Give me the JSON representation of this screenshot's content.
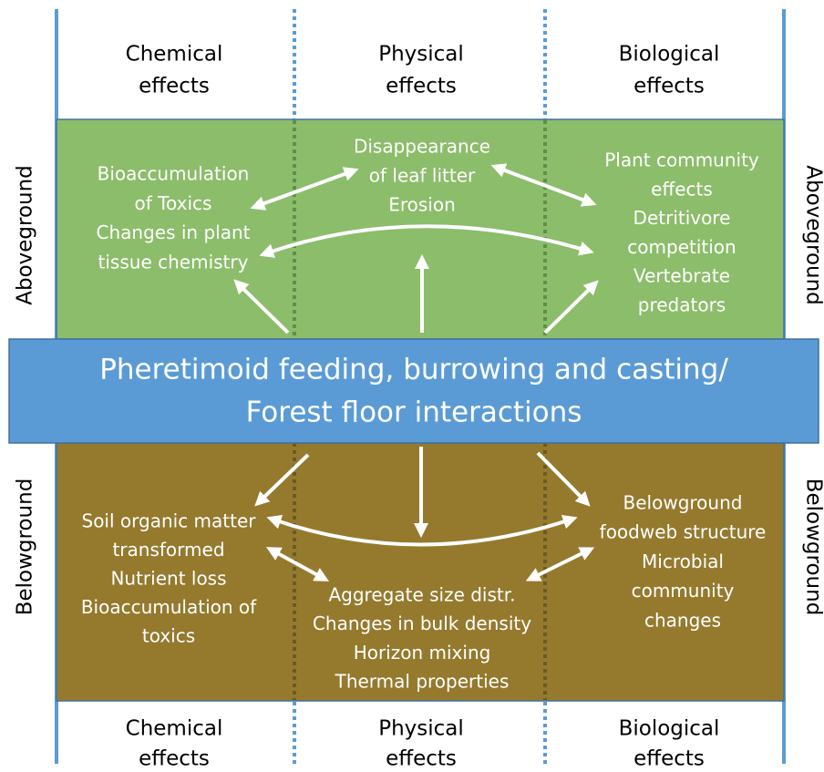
{
  "header": {
    "columns": [
      {
        "lines": [
          "Chemical",
          "effects"
        ]
      },
      {
        "lines": [
          "Physical",
          "effects"
        ]
      },
      {
        "lines": [
          "Biological",
          "effects"
        ]
      }
    ]
  },
  "footer": {
    "columns": [
      {
        "lines": [
          "Chemical",
          "effects"
        ]
      },
      {
        "lines": [
          "Physical",
          "effects"
        ]
      },
      {
        "lines": [
          "Biological",
          "effects"
        ]
      }
    ]
  },
  "side_labels": {
    "above_left": "Aboveground",
    "above_right": "Aboveground",
    "below_left": "Belowground",
    "below_right": "Belowground"
  },
  "center": {
    "lines": [
      "Pheretimoid feeding, burrowing and casting/",
      "Forest floor interactions"
    ]
  },
  "aboveground": {
    "chemical": {
      "lines": [
        "Bioaccumulation",
        "of Toxics",
        "Changes in plant",
        "tissue chemistry"
      ]
    },
    "physical": {
      "lines": [
        "Disappearance",
        "of leaf litter",
        "Erosion"
      ]
    },
    "biological": {
      "lines": [
        "Plant community",
        "effects",
        "Detritivore",
        "competition",
        "Vertebrate",
        "predators"
      ]
    }
  },
  "belowground": {
    "chemical": {
      "lines": [
        "Soil organic matter",
        "transformed",
        "Nutrient loss",
        "Bioaccumulation of",
        "toxics"
      ]
    },
    "physical": {
      "lines": [
        "Aggregate size distr.",
        "Changes in bulk density",
        "Horizon mixing",
        "Thermal properties"
      ]
    },
    "biological": {
      "lines": [
        "Belowground",
        "foodweb structure",
        "Microbial",
        "community",
        "changes"
      ]
    }
  }
}
